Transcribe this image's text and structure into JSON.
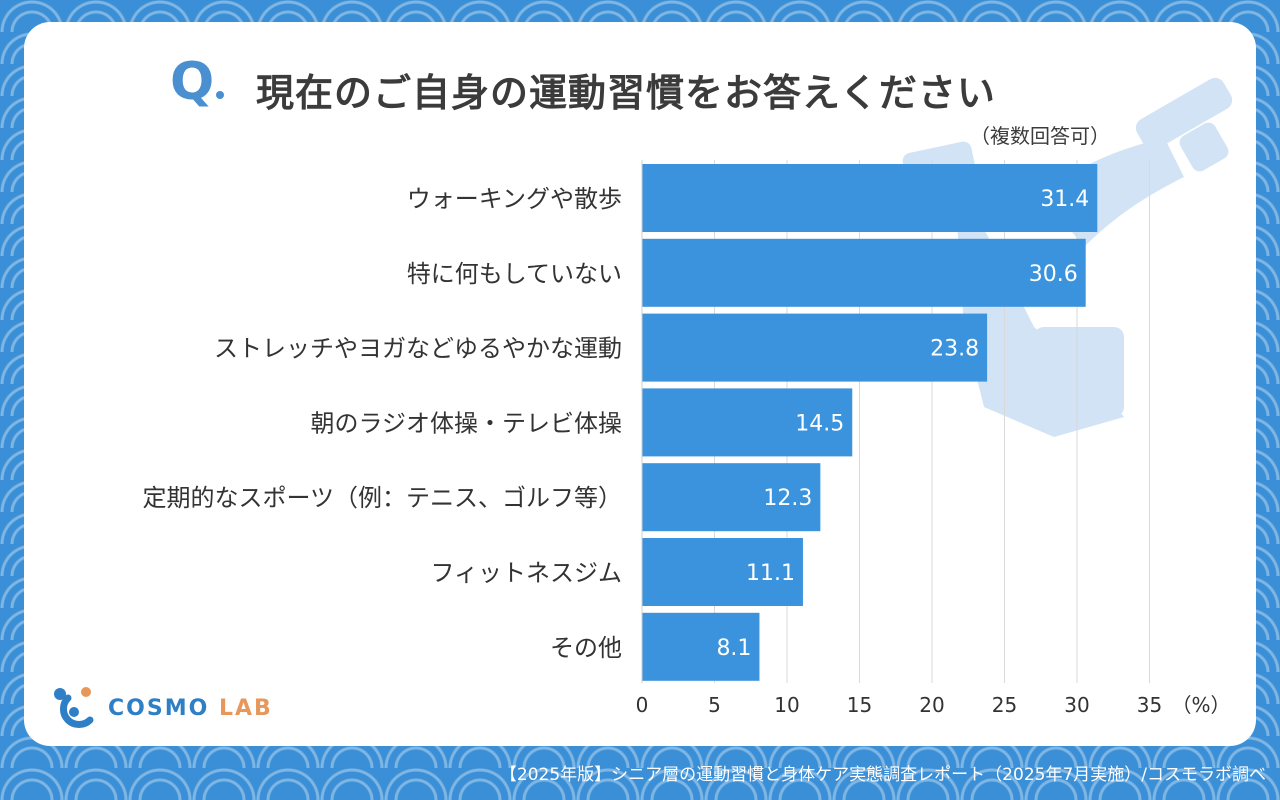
{
  "header": {
    "q_mark": "Q",
    "title": "現在のご自身の運動習慣をお答えください",
    "subtitle": "（複数回答可）"
  },
  "logo": {
    "name": "COSMO",
    "suffix": "LAB"
  },
  "footer": {
    "source": "【2025年版】シニア層の運動習慣と身体ケア実態調査レポート（2025年7月実施）/コスモラボ調べ"
  },
  "colors": {
    "bar": "#3a93dc",
    "background": "#3a8fd6",
    "accent": "#4a8fcf"
  },
  "chart_data": {
    "type": "bar",
    "orientation": "horizontal",
    "categories": [
      "ウォーキングや散歩",
      "特に何もしていない",
      "ストレッチやヨガなどゆるやかな運動",
      "朝のラジオ体操・テレビ体操",
      "定期的なスポーツ（例：テニス、ゴルフ等）",
      "フィットネスジム",
      "その他"
    ],
    "values": [
      31.4,
      30.6,
      23.8,
      14.5,
      12.3,
      11.1,
      8.1
    ],
    "value_labels": [
      "31.4",
      "30.6",
      "23.8",
      "14.5",
      "12.3",
      "11.1",
      "8.1"
    ],
    "xlim": [
      0,
      35
    ],
    "x_ticks": [
      "0",
      "5",
      "10",
      "15",
      "20",
      "25",
      "30",
      "35"
    ],
    "x_unit": "（%）",
    "grid": true
  }
}
